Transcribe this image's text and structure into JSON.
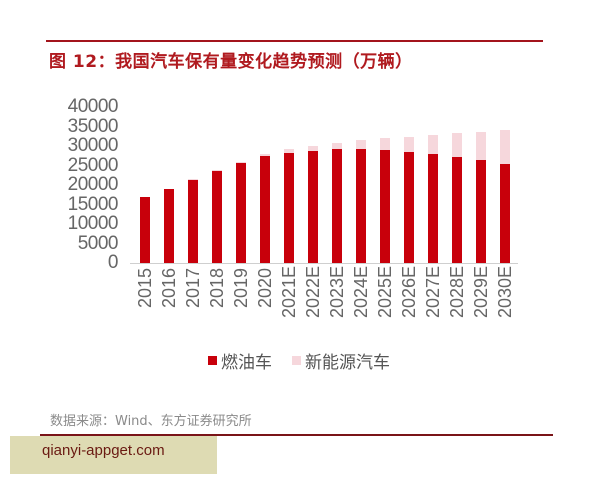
{
  "figure": {
    "title": "图 12：我国汽车保有量变化趋势预测（万辆）",
    "source": "数据来源：Wind、东方证券研究所",
    "watermark": "qianyi-appget.com"
  },
  "colors": {
    "title": "#b01a1f",
    "rule": "#a3141c",
    "ice_bar": "#c8000b",
    "nev_bar": "#f6d7dc"
  },
  "legend": {
    "ice_label": "燃油车",
    "nev_label": "新能源汽车"
  },
  "y_axis": {
    "ticks": [
      "40000",
      "35000",
      "30000",
      "25000",
      "20000",
      "15000",
      "10000",
      "5000",
      "0"
    ]
  },
  "chart_data": {
    "type": "bar",
    "stacked": true,
    "title": "图 12：我国汽车保有量变化趋势预测（万辆）",
    "xlabel": "",
    "ylabel": "万辆",
    "ylim": [
      0,
      40000
    ],
    "yticks": [
      0,
      5000,
      10000,
      15000,
      20000,
      25000,
      30000,
      35000,
      40000
    ],
    "grid": false,
    "legend_position": "bottom",
    "categories": [
      "2015",
      "2016",
      "2017",
      "2018",
      "2019",
      "2020",
      "2021E",
      "2022E",
      "2023E",
      "2024E",
      "2025E",
      "2026E",
      "2027E",
      "2028E",
      "2029E",
      "2030E"
    ],
    "series": [
      {
        "name": "燃油车",
        "color": "#c8000b",
        "values": [
          16900,
          19000,
          21300,
          23600,
          25600,
          27400,
          28200,
          28700,
          29200,
          29200,
          29000,
          28500,
          27900,
          27200,
          26400,
          25400
        ]
      },
      {
        "name": "新能源汽车",
        "color": "#f6d7dc",
        "values": [
          100,
          100,
          200,
          300,
          400,
          500,
          1000,
          1300,
          1600,
          2300,
          3000,
          3800,
          4900,
          6100,
          7200,
          8700
        ]
      }
    ],
    "source": "数据来源：Wind、东方证券研究所"
  }
}
